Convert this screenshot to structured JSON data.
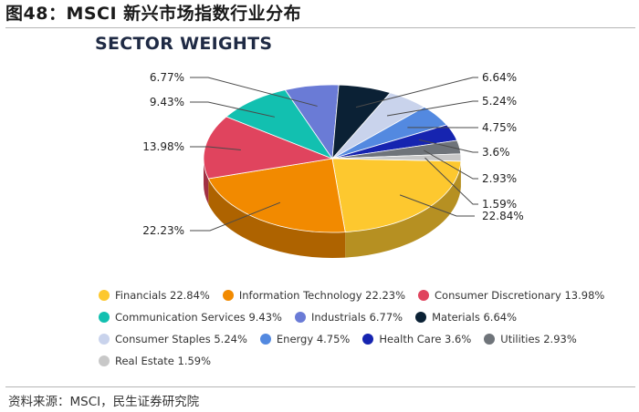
{
  "figure": {
    "title": "图48：MSCI 新兴市场指数行业分布",
    "source": "资料来源：MSCI，民生证券研究院"
  },
  "chart_data": {
    "type": "pie",
    "title": "SECTOR WEIGHTS",
    "slices": [
      {
        "name": "Financials",
        "value": 22.84,
        "label": "22.84%",
        "color": "#FDC82F"
      },
      {
        "name": "Information Technology",
        "value": 22.23,
        "label": "22.23%",
        "color": "#F28A00"
      },
      {
        "name": "Consumer Discretionary",
        "value": 13.98,
        "label": "13.98%",
        "color": "#E0445E"
      },
      {
        "name": "Communication Services",
        "value": 9.43,
        "label": "9.43%",
        "color": "#12C0B0"
      },
      {
        "name": "Industrials",
        "value": 6.77,
        "label": "6.77%",
        "color": "#6A7BD6"
      },
      {
        "name": "Materials",
        "value": 6.64,
        "label": "6.64%",
        "color": "#0B2135"
      },
      {
        "name": "Consumer Staples",
        "value": 5.24,
        "label": "5.24%",
        "color": "#C9D3EC"
      },
      {
        "name": "Energy",
        "value": 4.75,
        "label": "4.75%",
        "color": "#5389E0"
      },
      {
        "name": "Health Care",
        "value": 3.6,
        "label": "3.6%",
        "color": "#1624B0"
      },
      {
        "name": "Utilities",
        "value": 2.93,
        "label": "2.93%",
        "color": "#6F747A"
      },
      {
        "name": "Real Estate",
        "value": 1.59,
        "label": "1.59%",
        "color": "#C8C8C8"
      }
    ],
    "legend": [
      [
        {
          "label": "Financials 22.84%",
          "color": "#FDC82F"
        },
        {
          "label": "Information Technology 22.23%",
          "color": "#F28A00"
        },
        {
          "label": "Consumer Discretionary 13.98%",
          "color": "#E0445E"
        }
      ],
      [
        {
          "label": "Communication Services 9.43%",
          "color": "#12C0B0"
        },
        {
          "label": "Industrials 6.77%",
          "color": "#6A7BD6"
        },
        {
          "label": "Materials 6.64%",
          "color": "#0B2135"
        }
      ],
      [
        {
          "label": "Consumer Staples 5.24%",
          "color": "#C9D3EC"
        },
        {
          "label": "Energy 4.75%",
          "color": "#5389E0"
        },
        {
          "label": "Health Care 3.6%",
          "color": "#1624B0"
        },
        {
          "label": "Utilities 2.93%",
          "color": "#6F747A"
        }
      ],
      [
        {
          "label": "Real Estate 1.59%",
          "color": "#C8C8C8"
        }
      ]
    ]
  }
}
